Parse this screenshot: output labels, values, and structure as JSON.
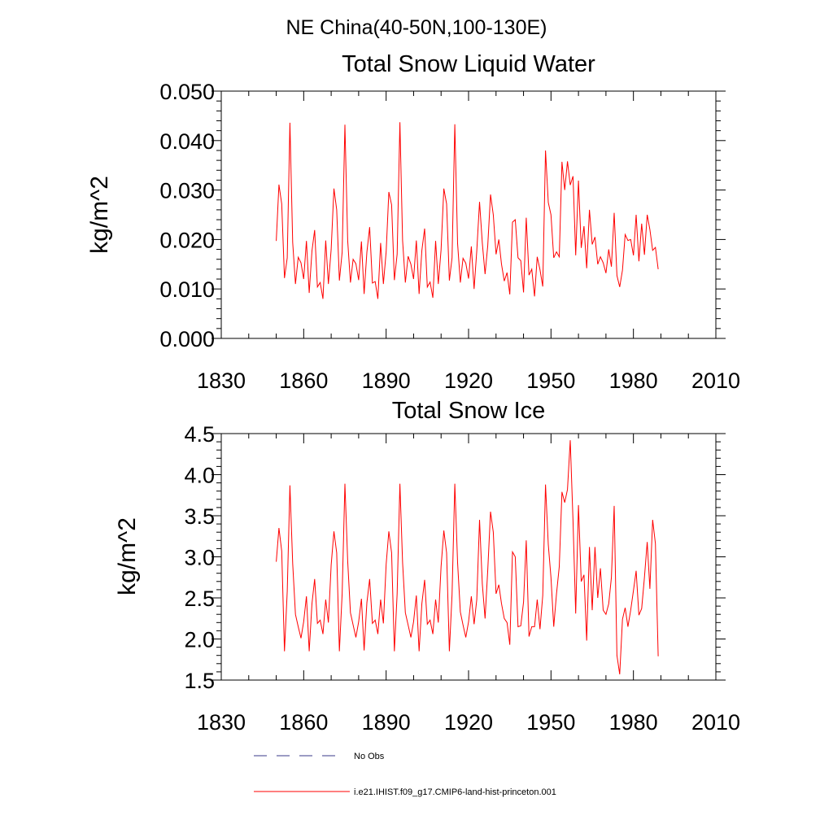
{
  "figure_title": "NE China(40-50N,100-130E)",
  "chart_data": [
    {
      "type": "line",
      "title": "Total Snow Liquid Water",
      "ylabel": "kg/m^2",
      "xlabel": "",
      "xlim": [
        1830,
        2010
      ],
      "ylim": [
        0.0,
        0.05
      ],
      "xticks": [
        "1830",
        "1860",
        "1890",
        "1920",
        "1950",
        "1980",
        "2010"
      ],
      "yticks": [
        "0.000",
        "0.010",
        "0.020",
        "0.030",
        "0.040",
        "0.050"
      ],
      "grid": false,
      "series": [
        {
          "name": "i.e21.IHIST.f09_g17.CMIP6-land-hist-princeton.001",
          "color": "#ff0000",
          "x": [
            1850,
            1851,
            1852,
            1853,
            1854,
            1855,
            1856,
            1857,
            1858,
            1859,
            1860,
            1861,
            1862,
            1863,
            1864,
            1865,
            1866,
            1867,
            1868,
            1869,
            1870,
            1871,
            1872,
            1873,
            1874,
            1875,
            1876,
            1877,
            1878,
            1879,
            1880,
            1881,
            1882,
            1883,
            1884,
            1885,
            1886,
            1887,
            1888,
            1889,
            1890,
            1891,
            1892,
            1893,
            1894,
            1895,
            1896,
            1897,
            1898,
            1899,
            1900,
            1901,
            1902,
            1903,
            1904,
            1905,
            1906,
            1907,
            1908,
            1909,
            1910,
            1911,
            1912,
            1913,
            1914,
            1915,
            1916,
            1917,
            1918,
            1919,
            1920,
            1921,
            1922,
            1923,
            1924,
            1925,
            1926,
            1927,
            1928,
            1929,
            1930,
            1931,
            1932,
            1933,
            1934,
            1935,
            1936,
            1937,
            1938,
            1939,
            1940,
            1941,
            1942,
            1943,
            1944,
            1945,
            1946,
            1947,
            1948,
            1949,
            1950,
            1951,
            1952,
            1953,
            1954,
            1955,
            1956,
            1957,
            1958,
            1959,
            1960,
            1961,
            1962,
            1963,
            1964,
            1965,
            1966,
            1967,
            1968,
            1969,
            1970,
            1971,
            1972,
            1973,
            1974,
            1975,
            1976,
            1977,
            1978,
            1979,
            1980,
            1981,
            1982,
            1983,
            1984,
            1985,
            1986,
            1987,
            1988,
            1989
          ],
          "y": [
            0.0197,
            0.0311,
            0.0272,
            0.0122,
            0.0163,
            0.0436,
            0.0194,
            0.011,
            0.0164,
            0.0153,
            0.012,
            0.0197,
            0.0092,
            0.0177,
            0.0219,
            0.0104,
            0.0113,
            0.008,
            0.0198,
            0.011,
            0.018,
            0.0303,
            0.026,
            0.0117,
            0.0174,
            0.0432,
            0.0198,
            0.0113,
            0.016,
            0.0151,
            0.0118,
            0.0196,
            0.009,
            0.0174,
            0.0225,
            0.0112,
            0.0115,
            0.008,
            0.0193,
            0.011,
            0.0175,
            0.0296,
            0.027,
            0.0118,
            0.017,
            0.0437,
            0.0198,
            0.0113,
            0.0166,
            0.015,
            0.012,
            0.0198,
            0.009,
            0.0178,
            0.0222,
            0.0104,
            0.0114,
            0.0082,
            0.0197,
            0.011,
            0.0179,
            0.0303,
            0.0272,
            0.0117,
            0.0163,
            0.0433,
            0.0192,
            0.0113,
            0.0162,
            0.0152,
            0.0121,
            0.0186,
            0.01,
            0.0177,
            0.0276,
            0.0193,
            0.013,
            0.0188,
            0.0291,
            0.025,
            0.017,
            0.02,
            0.015,
            0.0116,
            0.0133,
            0.0089,
            0.0235,
            0.024,
            0.0163,
            0.0157,
            0.0093,
            0.0244,
            0.0128,
            0.014,
            0.0085,
            0.0165,
            0.0139,
            0.0105,
            0.038,
            0.0275,
            0.025,
            0.0163,
            0.0175,
            0.0165,
            0.0357,
            0.03,
            0.0358,
            0.031,
            0.0328,
            0.0168,
            0.0319,
            0.0183,
            0.0227,
            0.0142,
            0.026,
            0.019,
            0.0205,
            0.015,
            0.0165,
            0.0153,
            0.0132,
            0.018,
            0.0145,
            0.0254,
            0.0127,
            0.0104,
            0.0138,
            0.021,
            0.0198,
            0.02,
            0.0168,
            0.025,
            0.0156,
            0.0232,
            0.0169,
            0.025,
            0.022,
            0.0178,
            0.0184,
            0.014
          ]
        }
      ]
    },
    {
      "type": "line",
      "title": "Total Snow Ice",
      "ylabel": "kg/m^2",
      "xlabel": "",
      "xlim": [
        1830,
        2010
      ],
      "ylim": [
        1.5,
        4.5
      ],
      "xticks": [
        "1830",
        "1860",
        "1890",
        "1920",
        "1950",
        "1980",
        "2010"
      ],
      "yticks": [
        "1.5",
        "2.0",
        "2.5",
        "3.0",
        "3.5",
        "4.0",
        "4.5"
      ],
      "grid": false,
      "series": [
        {
          "name": "i.e21.IHIST.f09_g17.CMIP6-land-hist-princeton.001",
          "color": "#ff0000",
          "x": [
            1850,
            1851,
            1852,
            1853,
            1854,
            1855,
            1856,
            1857,
            1858,
            1859,
            1860,
            1861,
            1862,
            1863,
            1864,
            1865,
            1866,
            1867,
            1868,
            1869,
            1870,
            1871,
            1872,
            1873,
            1874,
            1875,
            1876,
            1877,
            1878,
            1879,
            1880,
            1881,
            1882,
            1883,
            1884,
            1885,
            1886,
            1887,
            1888,
            1889,
            1890,
            1891,
            1892,
            1893,
            1894,
            1895,
            1896,
            1897,
            1898,
            1899,
            1900,
            1901,
            1902,
            1903,
            1904,
            1905,
            1906,
            1907,
            1908,
            1909,
            1910,
            1911,
            1912,
            1913,
            1914,
            1915,
            1916,
            1917,
            1918,
            1919,
            1920,
            1921,
            1922,
            1923,
            1924,
            1925,
            1926,
            1927,
            1928,
            1929,
            1930,
            1931,
            1932,
            1933,
            1934,
            1935,
            1936,
            1937,
            1938,
            1939,
            1940,
            1941,
            1942,
            1943,
            1944,
            1945,
            1946,
            1947,
            1948,
            1949,
            1950,
            1951,
            1952,
            1953,
            1954,
            1955,
            1956,
            1957,
            1958,
            1959,
            1960,
            1961,
            1962,
            1963,
            1964,
            1965,
            1966,
            1967,
            1968,
            1969,
            1970,
            1971,
            1972,
            1973,
            1974,
            1975,
            1976,
            1977,
            1978,
            1979,
            1980,
            1981,
            1982,
            1983,
            1984,
            1985,
            1986,
            1987,
            1988,
            1989
          ],
          "y": [
            2.94,
            3.35,
            3.07,
            1.85,
            2.58,
            3.87,
            2.92,
            2.3,
            2.15,
            2.01,
            2.21,
            2.52,
            1.85,
            2.43,
            2.73,
            2.19,
            2.23,
            2.06,
            2.48,
            2.2,
            2.9,
            3.31,
            3.05,
            1.85,
            2.55,
            3.89,
            2.95,
            2.32,
            2.17,
            2.02,
            2.21,
            2.49,
            1.86,
            2.44,
            2.73,
            2.19,
            2.23,
            2.06,
            2.48,
            2.19,
            2.91,
            3.31,
            3.05,
            1.85,
            2.55,
            3.89,
            2.93,
            2.32,
            2.17,
            2.02,
            2.21,
            2.53,
            1.85,
            2.43,
            2.72,
            2.18,
            2.23,
            2.06,
            2.48,
            2.2,
            2.88,
            3.32,
            3.05,
            1.85,
            2.54,
            3.89,
            2.93,
            2.33,
            2.17,
            2.02,
            2.21,
            2.52,
            2.18,
            2.48,
            3.45,
            2.67,
            2.25,
            2.84,
            3.55,
            3.3,
            2.55,
            2.66,
            2.43,
            2.25,
            2.2,
            1.93,
            3.06,
            3.0,
            2.15,
            2.16,
            2.45,
            3.2,
            2.03,
            2.15,
            2.15,
            2.48,
            2.12,
            2.53,
            3.88,
            3.15,
            2.75,
            2.15,
            2.55,
            2.88,
            3.79,
            3.66,
            3.82,
            4.42,
            3.44,
            2.31,
            3.63,
            2.7,
            2.78,
            1.98,
            3.12,
            2.35,
            3.12,
            2.5,
            2.86,
            2.35,
            2.3,
            2.43,
            2.75,
            3.62,
            1.8,
            1.57,
            2.24,
            2.38,
            2.15,
            2.35,
            2.59,
            2.83,
            2.29,
            2.37,
            2.75,
            3.18,
            2.61,
            3.45,
            3.16,
            1.79
          ]
        }
      ]
    }
  ],
  "legend": [
    {
      "label": "No Obs",
      "style": "dashed",
      "color": "#3a3a8a"
    },
    {
      "label": "i.e21.IHIST.f09_g17.CMIP6-land-hist-princeton.001",
      "style": "solid",
      "color": "#ff0000"
    }
  ]
}
